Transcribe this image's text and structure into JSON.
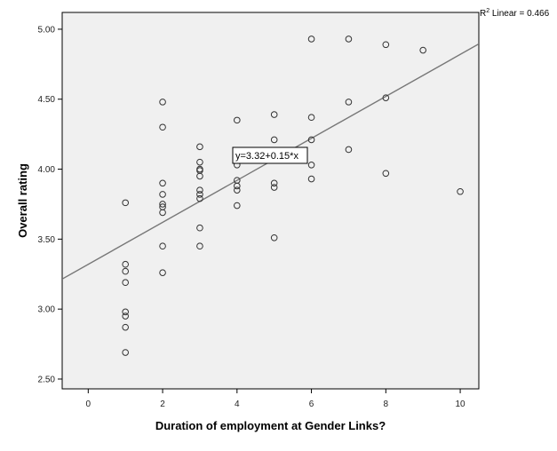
{
  "chart_data": {
    "type": "scatter",
    "xlabel": "Duration of employment at Gender Links?",
    "ylabel": "Overall rating",
    "xlim": [
      -0.7,
      10.5
    ],
    "ylim": [
      2.43,
      5.12
    ],
    "x_ticks": [
      0,
      2,
      4,
      6,
      8,
      10
    ],
    "y_ticks": [
      2.5,
      3.0,
      3.5,
      4.0,
      4.5,
      5.0
    ],
    "x_tick_labels": [
      "0",
      "2",
      "4",
      "6",
      "8",
      "10"
    ],
    "y_tick_labels": [
      "2.50",
      "3.00",
      "3.50",
      "4.00",
      "4.50",
      "5.00"
    ],
    "grid": false,
    "points": [
      {
        "x": 1,
        "y": 3.76
      },
      {
        "x": 1,
        "y": 3.32
      },
      {
        "x": 1,
        "y": 3.27
      },
      {
        "x": 1,
        "y": 3.19
      },
      {
        "x": 1,
        "y": 2.98
      },
      {
        "x": 1,
        "y": 2.95
      },
      {
        "x": 1,
        "y": 2.87
      },
      {
        "x": 1,
        "y": 2.69
      },
      {
        "x": 2,
        "y": 4.48
      },
      {
        "x": 2,
        "y": 4.3
      },
      {
        "x": 2,
        "y": 3.9
      },
      {
        "x": 2,
        "y": 3.82
      },
      {
        "x": 2,
        "y": 3.75
      },
      {
        "x": 2,
        "y": 3.73
      },
      {
        "x": 2,
        "y": 3.69
      },
      {
        "x": 2,
        "y": 3.45
      },
      {
        "x": 2,
        "y": 3.26
      },
      {
        "x": 3,
        "y": 4.16
      },
      {
        "x": 3,
        "y": 4.05
      },
      {
        "x": 3,
        "y": 4.0
      },
      {
        "x": 3,
        "y": 3.99
      },
      {
        "x": 3,
        "y": 3.95
      },
      {
        "x": 3,
        "y": 3.85
      },
      {
        "x": 3,
        "y": 3.82
      },
      {
        "x": 3,
        "y": 3.79
      },
      {
        "x": 3,
        "y": 3.58
      },
      {
        "x": 3,
        "y": 3.45
      },
      {
        "x": 4,
        "y": 4.35
      },
      {
        "x": 4,
        "y": 4.13
      },
      {
        "x": 4,
        "y": 4.08
      },
      {
        "x": 4,
        "y": 4.03
      },
      {
        "x": 4,
        "y": 3.92
      },
      {
        "x": 4,
        "y": 3.88
      },
      {
        "x": 4,
        "y": 3.85
      },
      {
        "x": 4,
        "y": 3.74
      },
      {
        "x": 5,
        "y": 4.39
      },
      {
        "x": 5,
        "y": 4.21
      },
      {
        "x": 5,
        "y": 3.9
      },
      {
        "x": 5,
        "y": 3.87
      },
      {
        "x": 5,
        "y": 3.51
      },
      {
        "x": 6,
        "y": 4.93
      },
      {
        "x": 6,
        "y": 4.37
      },
      {
        "x": 6,
        "y": 4.21
      },
      {
        "x": 6,
        "y": 4.03
      },
      {
        "x": 6,
        "y": 3.93
      },
      {
        "x": 7,
        "y": 4.93
      },
      {
        "x": 7,
        "y": 4.48
      },
      {
        "x": 7,
        "y": 4.14
      },
      {
        "x": 8,
        "y": 4.89
      },
      {
        "x": 8,
        "y": 4.51
      },
      {
        "x": 8,
        "y": 3.97
      },
      {
        "x": 9,
        "y": 4.85
      },
      {
        "x": 10,
        "y": 3.84
      }
    ],
    "fit_line": {
      "intercept": 3.32,
      "slope": 0.15
    },
    "equation_label": "y=3.32+0.15*x",
    "r2_prefix": "R",
    "r2_superscript": "2",
    "r2_text": " Linear = 0.466",
    "colors": {
      "plot_background": "#f0f0f0",
      "marker_stroke": "#333333",
      "fit_line": "#777777",
      "axis": "#000000"
    }
  }
}
